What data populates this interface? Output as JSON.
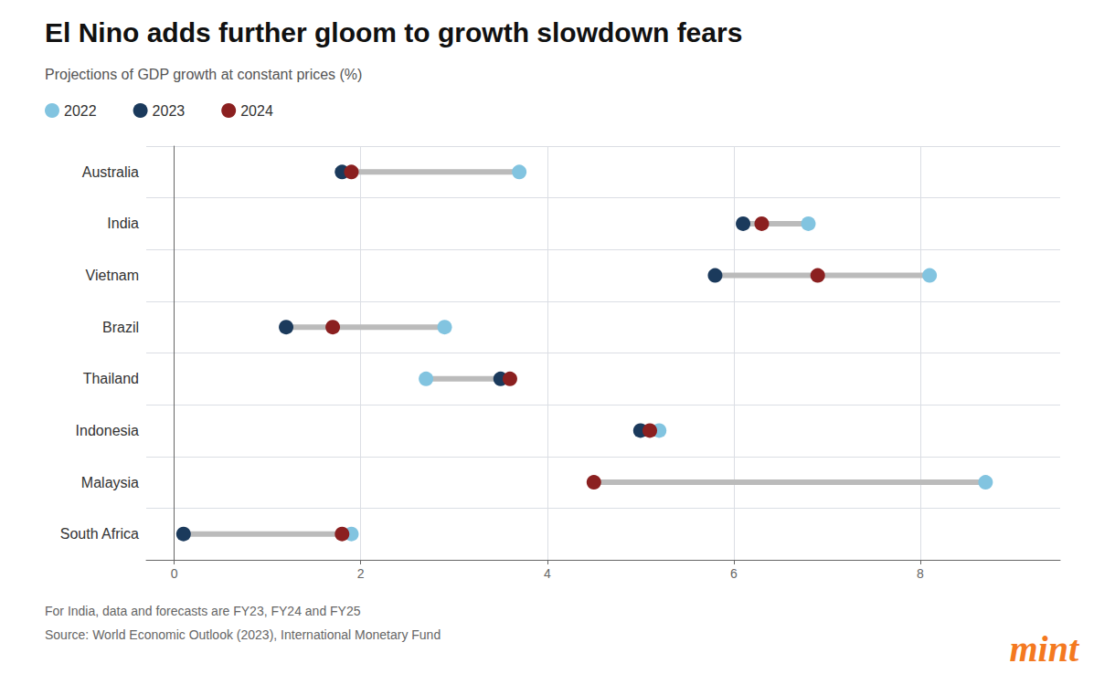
{
  "chart_data": {
    "type": "dumbbell",
    "title": "El Nino adds further gloom to growth slowdown fears",
    "subtitle": "Projections of GDP growth at constant prices (%)",
    "orientation": "horizontal",
    "categories": [
      "Australia",
      "India",
      "Vietnam",
      "Brazil",
      "Thailand",
      "Indonesia",
      "Malaysia",
      "South Africa"
    ],
    "series": [
      {
        "name": "2022",
        "color": "#82c4e0",
        "values": [
          3.7,
          6.8,
          8.1,
          2.9,
          2.7,
          5.2,
          8.7,
          1.9
        ]
      },
      {
        "name": "2023",
        "color": "#1b3a5c",
        "values": [
          1.8,
          6.1,
          5.8,
          1.2,
          3.5,
          5.0,
          null,
          0.1
        ]
      },
      {
        "name": "2024",
        "color": "#8b2020",
        "values": [
          1.9,
          6.3,
          6.9,
          1.7,
          3.6,
          5.1,
          4.5,
          1.8
        ]
      }
    ],
    "xlim": [
      -0.3,
      9.5
    ],
    "xticks": [
      0,
      2,
      4,
      6,
      8
    ],
    "grid": true,
    "legend": "top-left",
    "annotations": [
      {
        "text": "For India, data and forecasts are FY23, FY24 and FY25"
      },
      {
        "text": "Source: World Economic Outlook (2023), International Monetary Fund"
      },
      {
        "text": "mint",
        "color": "#f47920"
      }
    ]
  }
}
